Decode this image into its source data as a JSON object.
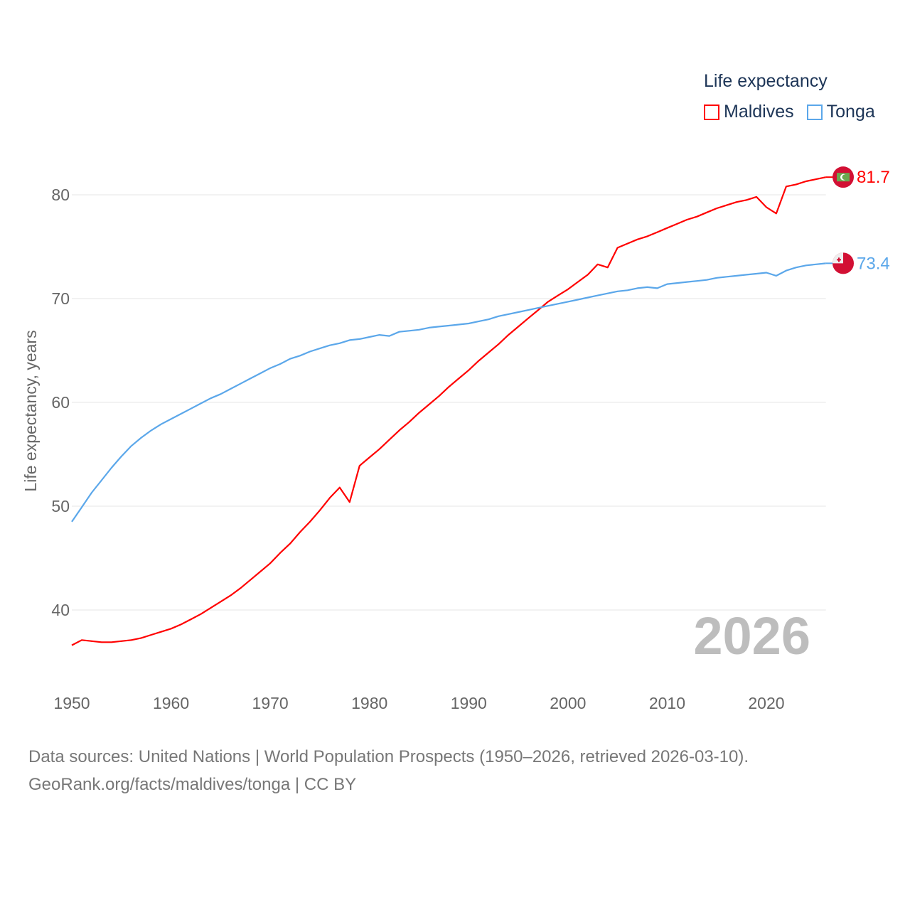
{
  "chart_data": {
    "type": "line",
    "ylabel": "Life expectancy, years",
    "xlabel": "",
    "xlim": [
      1950,
      2026
    ],
    "ylim": [
      35,
      84
    ],
    "yticks": [
      40,
      50,
      60,
      70,
      80
    ],
    "xticks": [
      1950,
      1960,
      1970,
      1980,
      1990,
      2000,
      2010,
      2020
    ],
    "grid": true,
    "legend_title": "Life expectancy",
    "legend_position": "top-right",
    "year_watermark": "2026",
    "series": [
      {
        "name": "Maldives",
        "color": "#ff0000",
        "end_label": "81.7",
        "values": [
          36.6,
          37.1,
          37.0,
          36.9,
          36.9,
          37.0,
          37.1,
          37.3,
          37.6,
          37.9,
          38.2,
          38.6,
          39.1,
          39.6,
          40.2,
          40.8,
          41.4,
          42.1,
          42.9,
          43.7,
          44.5,
          45.5,
          46.4,
          47.5,
          48.5,
          49.6,
          50.8,
          51.8,
          50.4,
          53.9,
          54.7,
          55.5,
          56.4,
          57.3,
          58.1,
          59.0,
          59.8,
          60.6,
          61.5,
          62.3,
          63.1,
          64.0,
          64.8,
          65.6,
          66.5,
          67.3,
          68.1,
          68.9,
          69.7,
          70.3,
          70.9,
          71.6,
          72.3,
          73.3,
          73.0,
          74.9,
          75.3,
          75.7,
          76.0,
          76.4,
          76.8,
          77.2,
          77.6,
          77.9,
          78.3,
          78.7,
          79.0,
          79.3,
          79.5,
          79.8,
          78.8,
          78.2,
          80.8,
          81.0,
          81.3,
          81.5,
          81.7
        ]
      },
      {
        "name": "Tonga",
        "color": "#5ba7ea",
        "end_label": "73.4",
        "values": [
          48.5,
          49.9,
          51.3,
          52.5,
          53.7,
          54.8,
          55.8,
          56.6,
          57.3,
          57.9,
          58.4,
          58.9,
          59.4,
          59.9,
          60.4,
          60.8,
          61.3,
          61.8,
          62.3,
          62.8,
          63.3,
          63.7,
          64.2,
          64.5,
          64.9,
          65.2,
          65.5,
          65.7,
          66.0,
          66.1,
          66.3,
          66.5,
          66.4,
          66.8,
          66.9,
          67.0,
          67.2,
          67.3,
          67.4,
          67.5,
          67.6,
          67.8,
          68.0,
          68.3,
          68.5,
          68.7,
          68.9,
          69.1,
          69.3,
          69.5,
          69.7,
          69.9,
          70.1,
          70.3,
          70.5,
          70.7,
          70.8,
          71.0,
          71.1,
          71.0,
          71.4,
          71.5,
          71.6,
          71.7,
          71.8,
          72.0,
          72.1,
          72.2,
          72.3,
          72.4,
          72.5,
          72.2,
          72.7,
          73.0,
          73.2,
          73.3,
          73.4
        ]
      }
    ]
  },
  "footer": {
    "line1": "Data sources: United Nations | World Population Prospects (1950–2026, retrieved 2026-03-10).",
    "line2": "GeoRank.org/facts/maldives/tonga | CC BY"
  }
}
